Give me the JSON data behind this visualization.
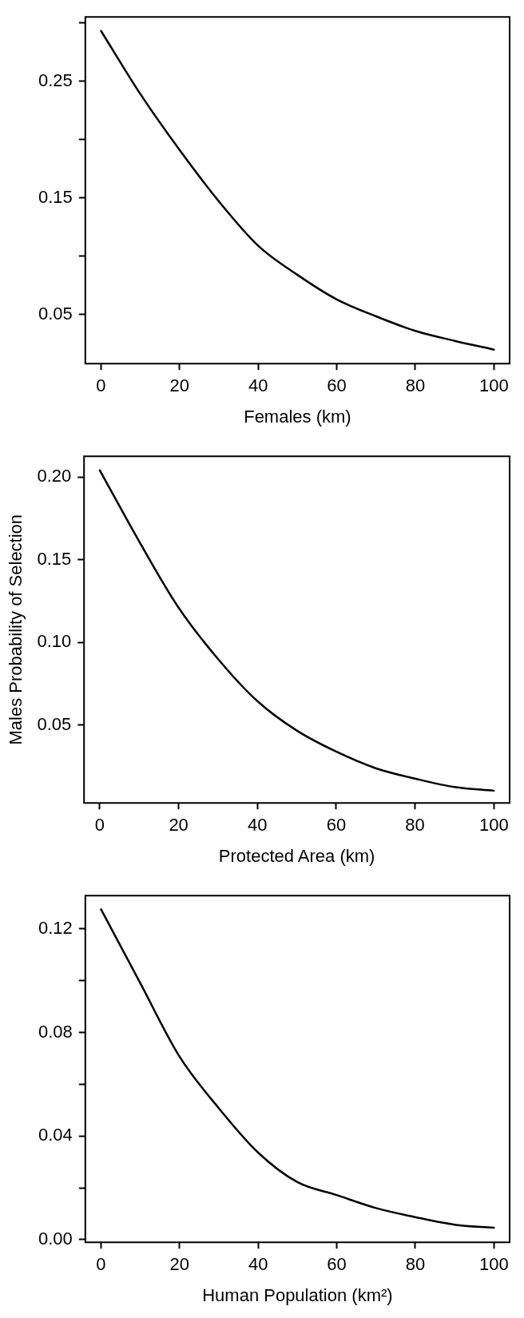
{
  "chart_data": [
    {
      "type": "line",
      "xlabel": "Females (km)",
      "x": [
        0,
        10,
        20,
        30,
        40,
        50,
        60,
        70,
        80,
        90,
        100
      ],
      "series": [
        {
          "color": "#000000",
          "values": [
            0.293,
            0.239,
            0.191,
            0.147,
            0.109,
            0.084,
            0.063,
            0.0485,
            0.036,
            0.0275,
            0.02
          ]
        }
      ],
      "xlim": [
        -4,
        104
      ],
      "xticks": [
        0,
        20,
        40,
        60,
        80,
        100
      ],
      "ylim": [
        0.008,
        0.305
      ],
      "yticks": [
        {
          "value": 0.05,
          "label": "0.05"
        },
        {
          "value": 0.1,
          "label": null
        },
        {
          "value": 0.15,
          "label": "0.15"
        },
        {
          "value": 0.2,
          "label": null
        },
        {
          "value": 0.25,
          "label": "0.25"
        },
        {
          "value": 0.3,
          "label": null
        }
      ],
      "grid": false,
      "legend": false,
      "marker": "none",
      "line_style": "solid"
    },
    {
      "type": "line",
      "xlabel": "Protected Area (km)",
      "ylabel": "Males Probability of Selection",
      "x": [
        0,
        10,
        20,
        30,
        40,
        50,
        60,
        70,
        80,
        90,
        100
      ],
      "series": [
        {
          "color": "#000000",
          "values": [
            0.204,
            0.161,
            0.121,
            0.09,
            0.0645,
            0.0467,
            0.034,
            0.024,
            0.0177,
            0.0126,
            0.0104
          ]
        }
      ],
      "xlim": [
        -4,
        104
      ],
      "xticks": [
        0,
        20,
        40,
        60,
        80,
        100
      ],
      "ylim": [
        0.003,
        0.2125
      ],
      "yticks": [
        {
          "value": 0.05,
          "label": "0.05"
        },
        {
          "value": 0.1,
          "label": "0.10"
        },
        {
          "value": 0.15,
          "label": "0.15"
        },
        {
          "value": 0.2,
          "label": "0.20"
        }
      ],
      "grid": false,
      "legend": false,
      "marker": "none",
      "line_style": "solid"
    },
    {
      "type": "line",
      "xlabel": "Human Population (km²)",
      "x": [
        0,
        10,
        20,
        30,
        40,
        50,
        60,
        70,
        80,
        90,
        100
      ],
      "series": [
        {
          "color": "#000000",
          "values": [
            0.1275,
            0.099,
            0.0706,
            0.0507,
            0.0336,
            0.0222,
            0.0172,
            0.0122,
            0.0087,
            0.0058,
            0.0046
          ]
        }
      ],
      "xlim": [
        -4,
        104
      ],
      "xticks": [
        0,
        20,
        40,
        60,
        80,
        100
      ],
      "ylim": [
        -0.001,
        0.1328
      ],
      "yticks": [
        {
          "value": 0,
          "label": "0.00"
        },
        {
          "value": 0.02,
          "label": null
        },
        {
          "value": 0.04,
          "label": "0.04"
        },
        {
          "value": 0.06,
          "label": null
        },
        {
          "value": 0.08,
          "label": "0.08"
        },
        {
          "value": 0.1,
          "label": null
        },
        {
          "value": 0.12,
          "label": "0.12"
        }
      ],
      "grid": false,
      "legend": false,
      "marker": "none",
      "line_style": "solid"
    }
  ]
}
